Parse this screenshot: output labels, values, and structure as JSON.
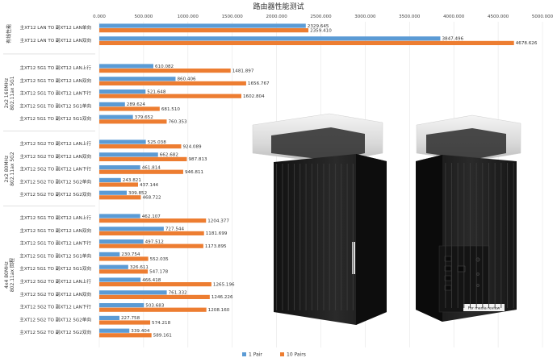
{
  "chart_data": {
    "type": "bar",
    "orientation": "horizontal",
    "title": "路由器性能测试",
    "xlim": [
      0,
      5000
    ],
    "xticks": [
      "0.000",
      "500.000",
      "1000.000",
      "1500.000",
      "2000.000",
      "2500.000",
      "3000.000",
      "3500.000",
      "4000.000",
      "4500.000",
      "5000.000"
    ],
    "grid": true,
    "legend_position": "bottom",
    "colors": {
      "1 Pair": "#5b9bd5",
      "10 Pairs": "#ed7d31"
    },
    "series_names": [
      "1 Pair",
      "10 Pairs"
    ],
    "groups": [
      {
        "name": "有线性能",
        "categories": [
          {
            "label": "主XT12 LAN TO 副XT12 LAN单向",
            "values": [
              2329.645,
              2359.41
            ]
          },
          {
            "label": "主XT12 LAN TO 副XT12 LAN双向",
            "values": [
              3847.496,
              4678.626
            ]
          }
        ]
      },
      {
        "name": "2x2 160MHz\n802.11ax 5G1",
        "categories": [
          {
            "label": "主XT12 5G1 TO 副XT12 LAN上行",
            "values": [
              610.082,
              1481.897
            ]
          },
          {
            "label": "主XT12 5G1 TO 副XT12 LAN双向",
            "values": [
              860.406,
              1656.767
            ]
          },
          {
            "label": "主XT12 5G1 TO 副XT12 LAN下行",
            "values": [
              521.648,
              1602.804
            ]
          },
          {
            "label": "主XT12 5G1 TO 副XT12 5G1单向",
            "values": [
              289.624,
              681.51
            ]
          },
          {
            "label": "主XT12 5G1 TO 副XT12 5G1双向",
            "values": [
              379.652,
              760.353
            ]
          }
        ]
      },
      {
        "name": "2x2 80MHz\n802.11ax 5G2",
        "categories": [
          {
            "label": "主XT12 5G2 TO 副XT12 LAN上行",
            "values": [
              525.038,
              924.089
            ]
          },
          {
            "label": "主XT12 5G2 TO 副XT12 LAN双向",
            "values": [
              662.682,
              987.813
            ]
          },
          {
            "label": "主XT12 5G2 TO 副XT12 LAN下行",
            "values": [
              461.814,
              946.811
            ]
          },
          {
            "label": "主XT12 5G2 TO 副XT12 5G2单向",
            "values": [
              243.821,
              437.144
            ]
          },
          {
            "label": "主XT12 5G2 TO 副XT12 5G2双向",
            "values": [
              309.852,
              468.722
            ]
          }
        ]
      },
      {
        "name": "4x4 80MHz\n802.11ax 回程",
        "categories": [
          {
            "label": "主XT12 5G1 TO 副XT12 LAN上行",
            "values": [
              462.107,
              1204.377
            ]
          },
          {
            "label": "主XT12 5G1 TO 副XT12 LAN双向",
            "values": [
              727.544,
              1181.699
            ]
          },
          {
            "label": "主XT12 5G1 TO 副XT12 LAN下行",
            "values": [
              497.512,
              1173.895
            ]
          },
          {
            "label": "主XT12 5G1 TO 副XT12 5G1单向",
            "values": [
              230.754,
              552.035
            ]
          },
          {
            "label": "主XT12 5G1 TO 副XT12 5G1双向",
            "values": [
              326.611,
              547.178
            ]
          },
          {
            "label": "主XT12 5G2 TO 副XT12 LAN上行",
            "values": [
              466.418,
              1265.196
            ]
          },
          {
            "label": "主XT12 5G2 TO 副XT12 LAN双向",
            "values": [
              761.332,
              1246.226
            ]
          },
          {
            "label": "主XT12 5G2 TO 副XT12 LAN下行",
            "values": [
              503.683,
              1208.16
            ]
          },
          {
            "label": "主XT12 5G2 TO 副XT12 5G2单向",
            "values": [
              227.758,
              574.218
            ]
          },
          {
            "label": "主XT12 5G2 TO 副XT12 5G2双向",
            "values": [
              339.404,
              589.161
            ]
          }
        ]
      }
    ]
  },
  "photo": {
    "device_label": "For media review"
  }
}
